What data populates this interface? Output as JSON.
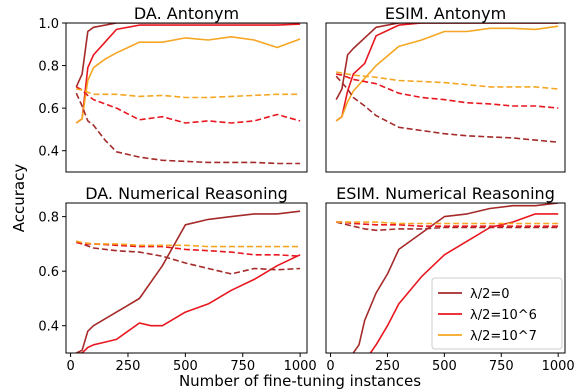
{
  "figure": {
    "ylabel": "Accuracy",
    "xlabel": "Number of fine-tuning instances",
    "legend": {
      "placement": "lower-right of bottom-right panel",
      "entries": [
        {
          "label": "λ/2=0",
          "color": "#a52a2a"
        },
        {
          "label": "λ/2=10^6",
          "color": "#e8171f"
        },
        {
          "label": "λ/2=10^7",
          "color": "#f5a623"
        }
      ]
    }
  },
  "chart_data": [
    {
      "type": "line",
      "title": "DA. Antonym",
      "xlim": [
        -20,
        1030
      ],
      "ylim": [
        0.3,
        1.0
      ],
      "xticks": [],
      "yticks": [
        {
          "v": 0.4,
          "label": "0.4"
        },
        {
          "v": 0.6,
          "label": "0.6"
        },
        {
          "v": 0.8,
          "label": "0.8"
        },
        {
          "v": 1.0,
          "label": "1.0"
        }
      ],
      "series": [
        {
          "key": "brown",
          "style": "solid",
          "x": [
            25,
            50,
            75,
            100,
            200,
            300,
            400,
            500,
            600,
            700,
            800,
            900,
            1000
          ],
          "y": [
            0.7,
            0.76,
            0.96,
            0.98,
            1.0,
            1.0,
            1.0,
            1.0,
            1.0,
            1.0,
            1.0,
            1.0,
            1.0
          ]
        },
        {
          "key": "red",
          "style": "solid",
          "x": [
            25,
            50,
            75,
            100,
            150,
            200,
            300,
            400,
            500,
            600,
            700,
            800,
            900,
            1000
          ],
          "y": [
            0.53,
            0.55,
            0.79,
            0.85,
            0.91,
            0.97,
            0.99,
            0.99,
            0.99,
            0.99,
            0.99,
            0.99,
            0.99,
            0.995
          ]
        },
        {
          "key": "orange",
          "style": "solid",
          "x": [
            25,
            50,
            75,
            100,
            150,
            200,
            300,
            400,
            500,
            600,
            700,
            800,
            900,
            1000
          ],
          "y": [
            0.53,
            0.55,
            0.73,
            0.79,
            0.83,
            0.86,
            0.91,
            0.91,
            0.93,
            0.92,
            0.935,
            0.92,
            0.885,
            0.925
          ]
        },
        {
          "key": "brown",
          "style": "dashed",
          "x": [
            25,
            50,
            75,
            100,
            150,
            200,
            300,
            400,
            500,
            600,
            700,
            800,
            900,
            1000
          ],
          "y": [
            0.67,
            0.61,
            0.54,
            0.52,
            0.45,
            0.395,
            0.37,
            0.355,
            0.35,
            0.345,
            0.345,
            0.345,
            0.34,
            0.34
          ]
        },
        {
          "key": "red",
          "style": "dashed",
          "x": [
            25,
            50,
            75,
            100,
            200,
            300,
            400,
            500,
            600,
            700,
            800,
            900,
            1000
          ],
          "y": [
            0.7,
            0.685,
            0.66,
            0.64,
            0.6,
            0.545,
            0.56,
            0.53,
            0.54,
            0.53,
            0.54,
            0.57,
            0.54
          ]
        },
        {
          "key": "orange",
          "style": "dashed",
          "x": [
            25,
            50,
            75,
            100,
            200,
            300,
            400,
            500,
            600,
            700,
            800,
            900,
            1000
          ],
          "y": [
            0.69,
            0.685,
            0.675,
            0.665,
            0.665,
            0.655,
            0.66,
            0.65,
            0.65,
            0.655,
            0.66,
            0.665,
            0.665
          ]
        }
      ]
    },
    {
      "type": "line",
      "title": "ESIM. Antonym",
      "xlim": [
        -20,
        1030
      ],
      "ylim": [
        0.3,
        1.0
      ],
      "xticks": [],
      "yticks": [],
      "series": [
        {
          "key": "brown",
          "style": "solid",
          "x": [
            25,
            50,
            75,
            100,
            200,
            300,
            400,
            500,
            600,
            700,
            800,
            900,
            1000
          ],
          "y": [
            0.64,
            0.69,
            0.85,
            0.88,
            0.98,
            1.0,
            1.0,
            1.0,
            1.0,
            1.0,
            1.0,
            1.0,
            1.0
          ]
        },
        {
          "key": "red",
          "style": "solid",
          "x": [
            25,
            50,
            75,
            100,
            150,
            200,
            300,
            400,
            500,
            600,
            700,
            800,
            900,
            1000
          ],
          "y": [
            0.54,
            0.56,
            0.68,
            0.76,
            0.81,
            0.94,
            0.99,
            1.0,
            1.0,
            1.0,
            1.0,
            1.0,
            1.0,
            1.0
          ]
        },
        {
          "key": "orange",
          "style": "solid",
          "x": [
            25,
            50,
            75,
            100,
            150,
            200,
            300,
            400,
            500,
            600,
            700,
            800,
            900,
            1000
          ],
          "y": [
            0.54,
            0.56,
            0.63,
            0.68,
            0.74,
            0.8,
            0.89,
            0.92,
            0.96,
            0.96,
            0.975,
            0.975,
            0.97,
            0.985
          ]
        },
        {
          "key": "brown",
          "style": "dashed",
          "x": [
            25,
            50,
            75,
            100,
            150,
            200,
            300,
            400,
            500,
            600,
            700,
            800,
            900,
            1000
          ],
          "y": [
            0.75,
            0.72,
            0.69,
            0.65,
            0.61,
            0.565,
            0.51,
            0.495,
            0.48,
            0.47,
            0.465,
            0.46,
            0.45,
            0.44
          ]
        },
        {
          "key": "red",
          "style": "dashed",
          "x": [
            25,
            50,
            75,
            100,
            200,
            300,
            400,
            500,
            600,
            700,
            800,
            900,
            1000
          ],
          "y": [
            0.76,
            0.755,
            0.745,
            0.735,
            0.715,
            0.67,
            0.65,
            0.64,
            0.625,
            0.62,
            0.61,
            0.61,
            0.6
          ]
        },
        {
          "key": "orange",
          "style": "dashed",
          "x": [
            25,
            50,
            75,
            100,
            200,
            300,
            400,
            500,
            600,
            700,
            800,
            900,
            1000
          ],
          "y": [
            0.77,
            0.765,
            0.76,
            0.755,
            0.745,
            0.73,
            0.725,
            0.72,
            0.71,
            0.7,
            0.7,
            0.7,
            0.69
          ]
        }
      ]
    },
    {
      "type": "line",
      "title": "DA. Numerical Reasoning",
      "xlim": [
        -20,
        1030
      ],
      "ylim": [
        0.3,
        0.85
      ],
      "xticks": [
        {
          "v": 0,
          "label": "0"
        },
        {
          "v": 250,
          "label": "250"
        },
        {
          "v": 500,
          "label": "500"
        },
        {
          "v": 750,
          "label": "750"
        },
        {
          "v": 1000,
          "label": "1000"
        }
      ],
      "yticks": [
        {
          "v": 0.4,
          "label": "0.4"
        },
        {
          "v": 0.6,
          "label": "0.6"
        },
        {
          "v": 0.8,
          "label": "0.8"
        }
      ],
      "series": [
        {
          "key": "brown",
          "style": "solid",
          "x": [
            25,
            50,
            75,
            100,
            200,
            300,
            400,
            500,
            600,
            700,
            800,
            900,
            1000
          ],
          "y": [
            0.3,
            0.31,
            0.38,
            0.4,
            0.45,
            0.5,
            0.62,
            0.77,
            0.79,
            0.8,
            0.81,
            0.81,
            0.82
          ]
        },
        {
          "key": "red",
          "style": "solid",
          "x": [
            25,
            50,
            75,
            100,
            150,
            200,
            300,
            350,
            400,
            500,
            600,
            700,
            800,
            900,
            1000
          ],
          "y": [
            0.3,
            0.3,
            0.32,
            0.33,
            0.34,
            0.35,
            0.41,
            0.4,
            0.4,
            0.45,
            0.48,
            0.53,
            0.57,
            0.62,
            0.66
          ]
        },
        {
          "key": "brown",
          "style": "dashed",
          "x": [
            25,
            50,
            100,
            200,
            300,
            400,
            500,
            600,
            700,
            800,
            900,
            1000
          ],
          "y": [
            0.71,
            0.7,
            0.685,
            0.675,
            0.67,
            0.655,
            0.63,
            0.61,
            0.59,
            0.61,
            0.605,
            0.61
          ]
        },
        {
          "key": "red",
          "style": "dashed",
          "x": [
            25,
            50,
            100,
            200,
            300,
            400,
            500,
            600,
            700,
            800,
            900,
            1000
          ],
          "y": [
            0.705,
            0.7,
            0.7,
            0.695,
            0.69,
            0.69,
            0.68,
            0.675,
            0.67,
            0.66,
            0.66,
            0.655
          ]
        },
        {
          "key": "orange",
          "style": "dashed",
          "x": [
            25,
            50,
            100,
            200,
            300,
            400,
            500,
            600,
            700,
            800,
            900,
            1000
          ],
          "y": [
            0.71,
            0.705,
            0.7,
            0.7,
            0.695,
            0.695,
            0.695,
            0.69,
            0.69,
            0.69,
            0.69,
            0.69
          ]
        }
      ]
    },
    {
      "type": "line",
      "title": "ESIM. Numerical Reasoning",
      "xlim": [
        -20,
        1030
      ],
      "ylim": [
        0.3,
        0.85
      ],
      "xticks": [
        {
          "v": 0,
          "label": "0"
        },
        {
          "v": 250,
          "label": "250"
        },
        {
          "v": 500,
          "label": "500"
        },
        {
          "v": 750,
          "label": "750"
        },
        {
          "v": 1000,
          "label": "1000"
        }
      ],
      "yticks": [],
      "series": [
        {
          "key": "brown",
          "style": "solid",
          "x": [
            100,
            125,
            150,
            200,
            250,
            300,
            400,
            500,
            600,
            700,
            800,
            900,
            1000
          ],
          "y": [
            0.3,
            0.33,
            0.42,
            0.52,
            0.59,
            0.68,
            0.74,
            0.8,
            0.81,
            0.83,
            0.84,
            0.84,
            0.85
          ]
        },
        {
          "key": "red",
          "style": "solid",
          "x": [
            175,
            200,
            250,
            300,
            400,
            500,
            600,
            700,
            800,
            900,
            1000
          ],
          "y": [
            0.3,
            0.33,
            0.4,
            0.48,
            0.58,
            0.66,
            0.71,
            0.76,
            0.78,
            0.81,
            0.81
          ]
        },
        {
          "key": "brown",
          "style": "dashed",
          "x": [
            25,
            50,
            100,
            150,
            200,
            300,
            400,
            500,
            600,
            700,
            800,
            900,
            1000
          ],
          "y": [
            0.78,
            0.775,
            0.765,
            0.755,
            0.75,
            0.755,
            0.755,
            0.76,
            0.76,
            0.76,
            0.76,
            0.76,
            0.76
          ]
        },
        {
          "key": "red",
          "style": "dashed",
          "x": [
            25,
            50,
            100,
            200,
            300,
            400,
            500,
            600,
            700,
            800,
            900,
            1000
          ],
          "y": [
            0.78,
            0.78,
            0.775,
            0.77,
            0.77,
            0.765,
            0.765,
            0.765,
            0.765,
            0.765,
            0.765,
            0.765
          ]
        },
        {
          "key": "orange",
          "style": "dashed",
          "x": [
            25,
            50,
            100,
            200,
            300,
            400,
            500,
            600,
            700,
            800,
            900,
            1000
          ],
          "y": [
            0.78,
            0.78,
            0.78,
            0.78,
            0.775,
            0.775,
            0.775,
            0.775,
            0.775,
            0.775,
            0.775,
            0.775
          ]
        }
      ]
    }
  ]
}
